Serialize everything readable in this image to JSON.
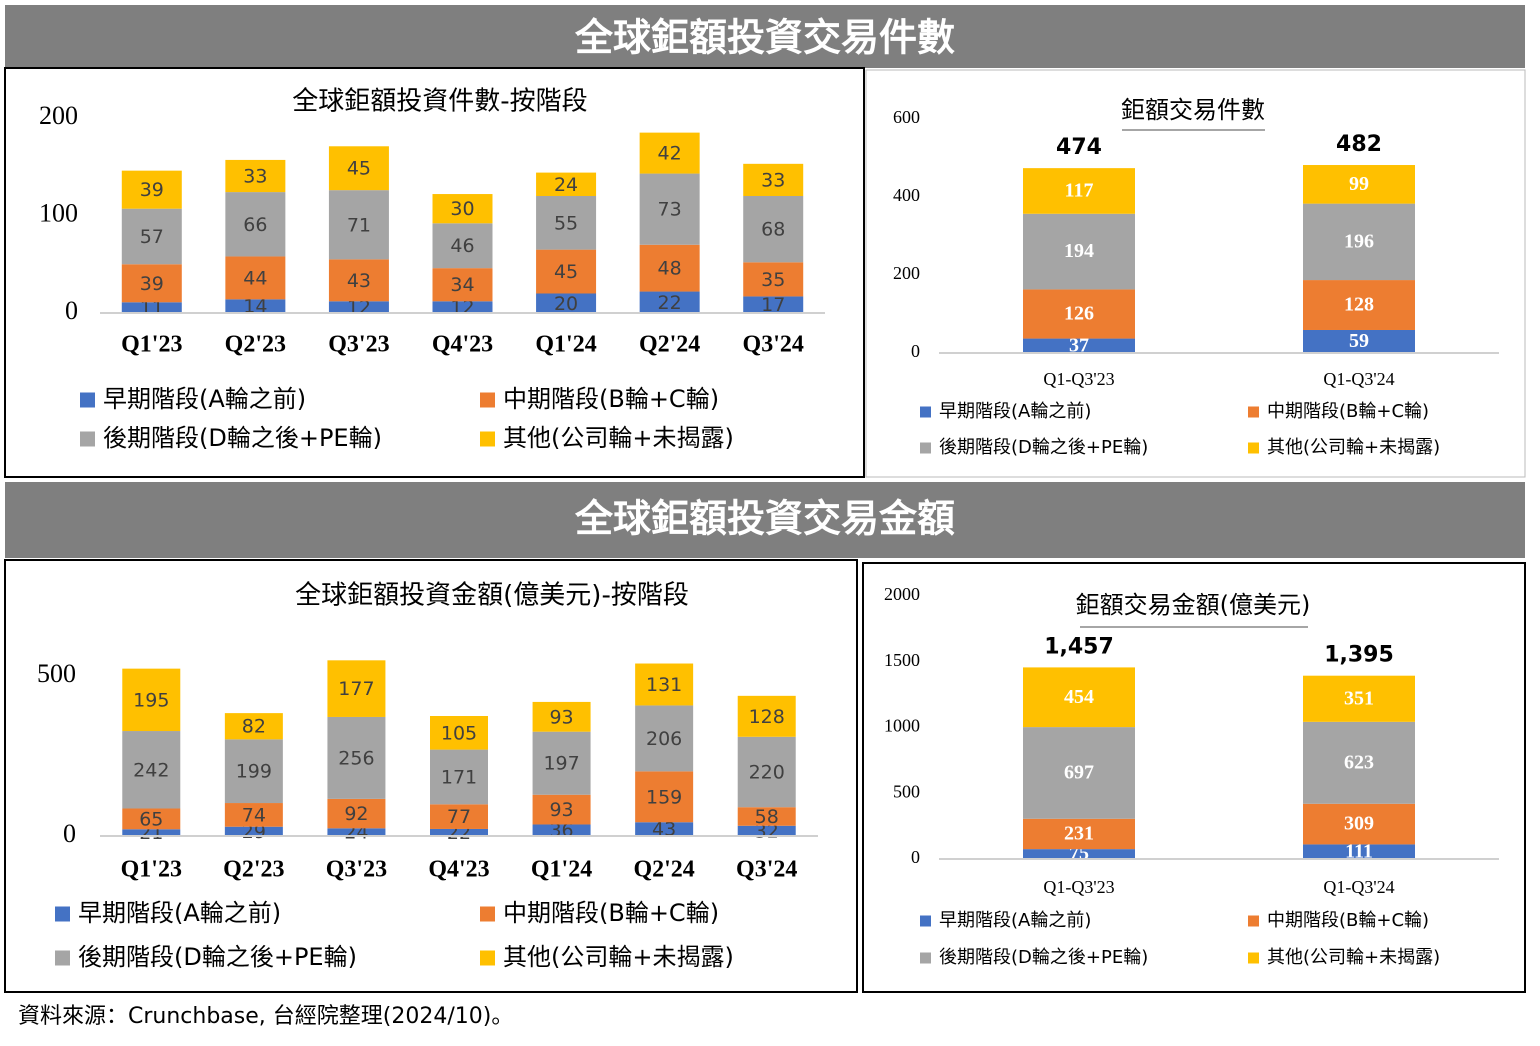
{
  "banners": [
    "全球鉅額投資交易件數",
    "全球鉅額投資交易金額"
  ],
  "chart_data": [
    {
      "type": "stacked_bar",
      "title": "全球鉅額投資件數-按階段",
      "categories": [
        "Q1'23",
        "Q2'23",
        "Q3'23",
        "Q4'23",
        "Q1'24",
        "Q2'24",
        "Q3'24"
      ],
      "series": [
        {
          "name": "早期階段(A輪之前)",
          "color": "#4472c4",
          "values": [
            11,
            14,
            12,
            12,
            20,
            22,
            17
          ]
        },
        {
          "name": "中期階段(B輪+C輪)",
          "color": "#ed7d31",
          "values": [
            39,
            44,
            43,
            34,
            45,
            48,
            35
          ]
        },
        {
          "name": "後期階段(D輪之後+PE輪)",
          "color": "#a5a5a5",
          "values": [
            57,
            66,
            71,
            46,
            55,
            73,
            68
          ]
        },
        {
          "name": "其他(公司輪+未揭露)",
          "color": "#ffc000",
          "values": [
            39,
            33,
            45,
            30,
            24,
            42,
            33
          ]
        }
      ],
      "ylim": [
        0,
        200
      ],
      "yticks": [
        0,
        100,
        200
      ]
    },
    {
      "type": "stacked_bar",
      "title": "鉅額交易件數",
      "categories": [
        "Q1-Q3'23",
        "Q1-Q3'24"
      ],
      "series": [
        {
          "name": "早期階段(A輪之前)",
          "color": "#4472c4",
          "values": [
            37,
            59
          ]
        },
        {
          "name": "中期階段(B輪+C輪)",
          "color": "#ed7d31",
          "values": [
            126,
            128
          ]
        },
        {
          "name": "後期階段(D輪之後+PE輪)",
          "color": "#a5a5a5",
          "values": [
            194,
            196
          ]
        },
        {
          "name": "其他(公司輪+未揭露)",
          "color": "#ffc000",
          "values": [
            117,
            99
          ]
        }
      ],
      "totals": [
        474,
        482
      ],
      "ylim": [
        0,
        600
      ],
      "yticks": [
        0,
        200,
        400,
        600
      ]
    },
    {
      "type": "stacked_bar",
      "title": "全球鉅額投資金額(億美元)-按階段",
      "categories": [
        "Q1'23",
        "Q2'23",
        "Q3'23",
        "Q4'23",
        "Q1'24",
        "Q2'24",
        "Q3'24"
      ],
      "series": [
        {
          "name": "早期階段(A輪之前)",
          "color": "#4472c4",
          "values": [
            21,
            29,
            24,
            22,
            36,
            43,
            32
          ]
        },
        {
          "name": "中期階段(B輪+C輪)",
          "color": "#ed7d31",
          "values": [
            65,
            74,
            92,
            77,
            93,
            159,
            58
          ]
        },
        {
          "name": "後期階段(D輪之後+PE輪)",
          "color": "#a5a5a5",
          "values": [
            242,
            199,
            256,
            171,
            197,
            206,
            220
          ]
        },
        {
          "name": "其他(公司輪+未揭露)",
          "color": "#ffc000",
          "values": [
            195,
            82,
            177,
            105,
            93,
            131,
            128
          ]
        }
      ],
      "ylim": [
        0,
        600
      ],
      "yticks": [
        0,
        500
      ]
    },
    {
      "type": "stacked_bar",
      "title": "鉅額交易金額(億美元)",
      "categories": [
        "Q1-Q3'23",
        "Q1-Q3'24"
      ],
      "series": [
        {
          "name": "早期階段(A輪之前)",
          "color": "#4472c4",
          "values": [
            75,
            111
          ]
        },
        {
          "name": "中期階段(B輪+C輪)",
          "color": "#ed7d31",
          "values": [
            231,
            309
          ]
        },
        {
          "name": "後期階段(D輪之後+PE輪)",
          "color": "#a5a5a5",
          "values": [
            697,
            623
          ]
        },
        {
          "name": "其他(公司輪+未揭露)",
          "color": "#ffc000",
          "values": [
            454,
            351
          ]
        }
      ],
      "totals": [
        1457,
        1395
      ],
      "total_labels": [
        "1,457",
        "1,395"
      ],
      "ylim": [
        0,
        2000
      ],
      "yticks": [
        0,
        500,
        1000,
        1500,
        2000
      ]
    }
  ],
  "source": "資料來源：Crunchbase, 台經院整理(2024/10)。"
}
